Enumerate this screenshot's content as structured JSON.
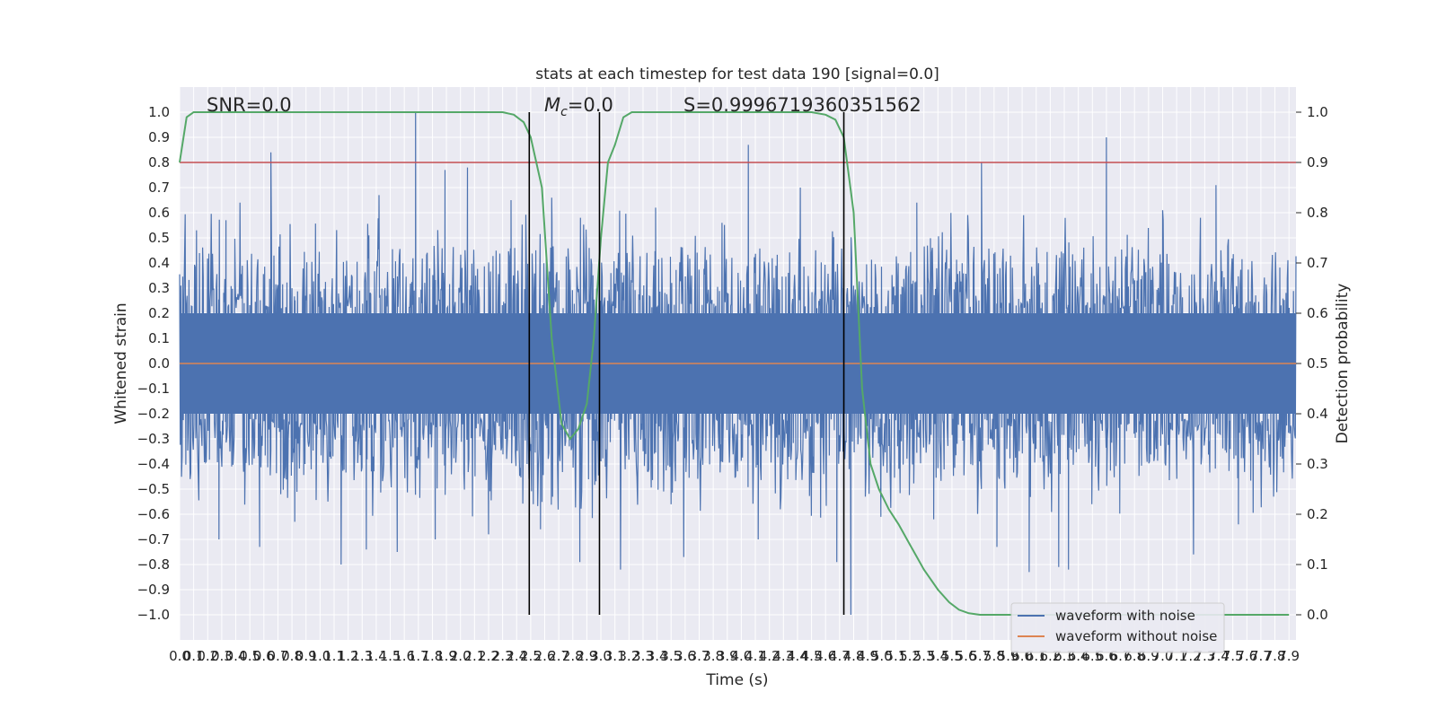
{
  "chart_data": {
    "type": "line",
    "title": "stats at each timestep for test data 190 [signal=0.0]",
    "xlabel": "Time (s)",
    "ylabel": "Whitened strain",
    "y2label": "Detection probability",
    "xlim": [
      0,
      7.95
    ],
    "ylim": [
      -1.1,
      1.1
    ],
    "y2lim": [
      -0.05,
      1.05
    ],
    "xticks": [
      0.0,
      0.1,
      0.2,
      0.3,
      0.4,
      0.5,
      0.6,
      0.7,
      0.8,
      0.9,
      1.0,
      1.1,
      1.2,
      1.3,
      1.4,
      1.5,
      1.6,
      1.7,
      1.8,
      1.9,
      2.0,
      2.1,
      2.2,
      2.3,
      2.4,
      2.5,
      2.6,
      2.7,
      2.8,
      2.9,
      3.0,
      3.1,
      3.2,
      3.3,
      3.4,
      3.5,
      3.6,
      3.7,
      3.8,
      3.9,
      4.0,
      4.1,
      4.2,
      4.3,
      4.4,
      4.5,
      4.6,
      4.7,
      4.8,
      4.9,
      5.0,
      5.1,
      5.2,
      5.3,
      5.4,
      5.5,
      5.6,
      5.7,
      5.8,
      5.9,
      6.0,
      6.1,
      6.2,
      6.3,
      6.4,
      6.5,
      6.6,
      6.7,
      6.8,
      6.9,
      7.0,
      7.1,
      7.2,
      7.3,
      7.4,
      7.5,
      7.6,
      7.7,
      7.8,
      7.9
    ],
    "yticks": [
      -1.0,
      -0.9,
      -0.8,
      -0.7,
      -0.6,
      -0.5,
      -0.4,
      -0.3,
      -0.2,
      -0.1,
      0.0,
      0.1,
      0.2,
      0.3,
      0.4,
      0.5,
      0.6,
      0.7,
      0.8,
      0.9,
      1.0
    ],
    "y2ticks": [
      0.0,
      0.1,
      0.2,
      0.3,
      0.4,
      0.5,
      0.6,
      0.7,
      0.8,
      0.9,
      1.0
    ],
    "annotations": {
      "snr": "SNR=0.0",
      "mc_symbol": "M",
      "mc_sub": "c",
      "mc_value": "=0.0",
      "s": "S=0.9996719360351562"
    },
    "threshold_y": 0.8,
    "vlines_x": [
      2.49,
      2.99,
      4.73
    ],
    "series": [
      {
        "name": "waveform with noise",
        "color": "#4c72b0",
        "note_envelope": "dense whitened-strain noise, core ±0.2, bursts to about ±0.7",
        "peaks": [
          [
            0.12,
            0.53
          ],
          [
            0.28,
            -0.7
          ],
          [
            0.33,
            0.57
          ],
          [
            0.43,
            0.64
          ],
          [
            0.57,
            -0.73
          ],
          [
            0.65,
            0.65
          ],
          [
            0.65,
            0.84
          ],
          [
            0.82,
            -0.63
          ],
          [
            1.15,
            -0.8
          ],
          [
            1.33,
            -0.74
          ],
          [
            1.42,
            0.67
          ],
          [
            1.55,
            -0.75
          ],
          [
            1.68,
            1.0
          ],
          [
            1.82,
            -0.7
          ],
          [
            1.89,
            0.77
          ],
          [
            2.05,
            0.78
          ],
          [
            2.2,
            -0.68
          ],
          [
            2.36,
            0.65
          ],
          [
            2.57,
            -0.66
          ],
          [
            2.65,
            0.66
          ],
          [
            2.85,
            -0.79
          ],
          [
            3.14,
            -0.82
          ],
          [
            3.39,
            0.62
          ],
          [
            3.59,
            -0.77
          ],
          [
            4.05,
            0.87
          ],
          [
            4.12,
            -0.7
          ],
          [
            4.42,
            0.7
          ],
          [
            4.68,
            -0.79
          ],
          [
            4.78,
            -1.0
          ],
          [
            5.25,
            0.64
          ],
          [
            5.37,
            -0.62
          ],
          [
            5.71,
            0.8
          ],
          [
            5.82,
            -0.73
          ],
          [
            6.05,
            -0.83
          ],
          [
            6.26,
            -0.81
          ],
          [
            6.33,
            -0.82
          ],
          [
            6.6,
            0.9
          ],
          [
            7.0,
            0.61
          ],
          [
            7.22,
            -0.76
          ],
          [
            7.38,
            0.71
          ],
          [
            7.54,
            -0.64
          ]
        ]
      },
      {
        "name": "waveform without noise",
        "color": "#dd8452",
        "x": [
          0,
          7.95
        ],
        "y": [
          0,
          0
        ]
      },
      {
        "name": "detection probability",
        "color": "#55a868",
        "axis": "right",
        "x": [
          0.0,
          0.05,
          0.1,
          0.2,
          0.5,
          1.0,
          1.5,
          2.0,
          2.2,
          2.3,
          2.38,
          2.45,
          2.5,
          2.58,
          2.65,
          2.72,
          2.78,
          2.84,
          2.9,
          2.95,
          3.0,
          3.05,
          3.1,
          3.16,
          3.22,
          3.3,
          3.5,
          4.0,
          4.3,
          4.5,
          4.6,
          4.67,
          4.73,
          4.8,
          4.86,
          4.92,
          4.98,
          5.05,
          5.12,
          5.2,
          5.3,
          5.4,
          5.48,
          5.55,
          5.62,
          5.7,
          5.8,
          6.0,
          6.5,
          7.0,
          7.5,
          7.9
        ],
        "y": [
          0.9,
          0.99,
          1.0,
          1.0,
          1.0,
          1.0,
          1.0,
          1.0,
          1.0,
          1.0,
          0.995,
          0.98,
          0.95,
          0.85,
          0.55,
          0.38,
          0.35,
          0.37,
          0.42,
          0.55,
          0.75,
          0.9,
          0.935,
          0.99,
          1.0,
          1.0,
          1.0,
          1.0,
          1.0,
          1.0,
          0.995,
          0.985,
          0.95,
          0.8,
          0.45,
          0.3,
          0.25,
          0.21,
          0.18,
          0.14,
          0.09,
          0.05,
          0.025,
          0.01,
          0.003,
          0.0,
          0.0,
          0.0,
          0.0,
          0.0,
          0.0,
          0.0
        ]
      }
    ],
    "legend": {
      "placement": "lower-right",
      "entries": [
        "waveform with noise",
        "waveform without noise"
      ]
    },
    "colors": {
      "plot_bg": "#eaeaf2",
      "grid": "#ffffff",
      "threshold": "#c44e52",
      "vline": "#000000"
    }
  }
}
